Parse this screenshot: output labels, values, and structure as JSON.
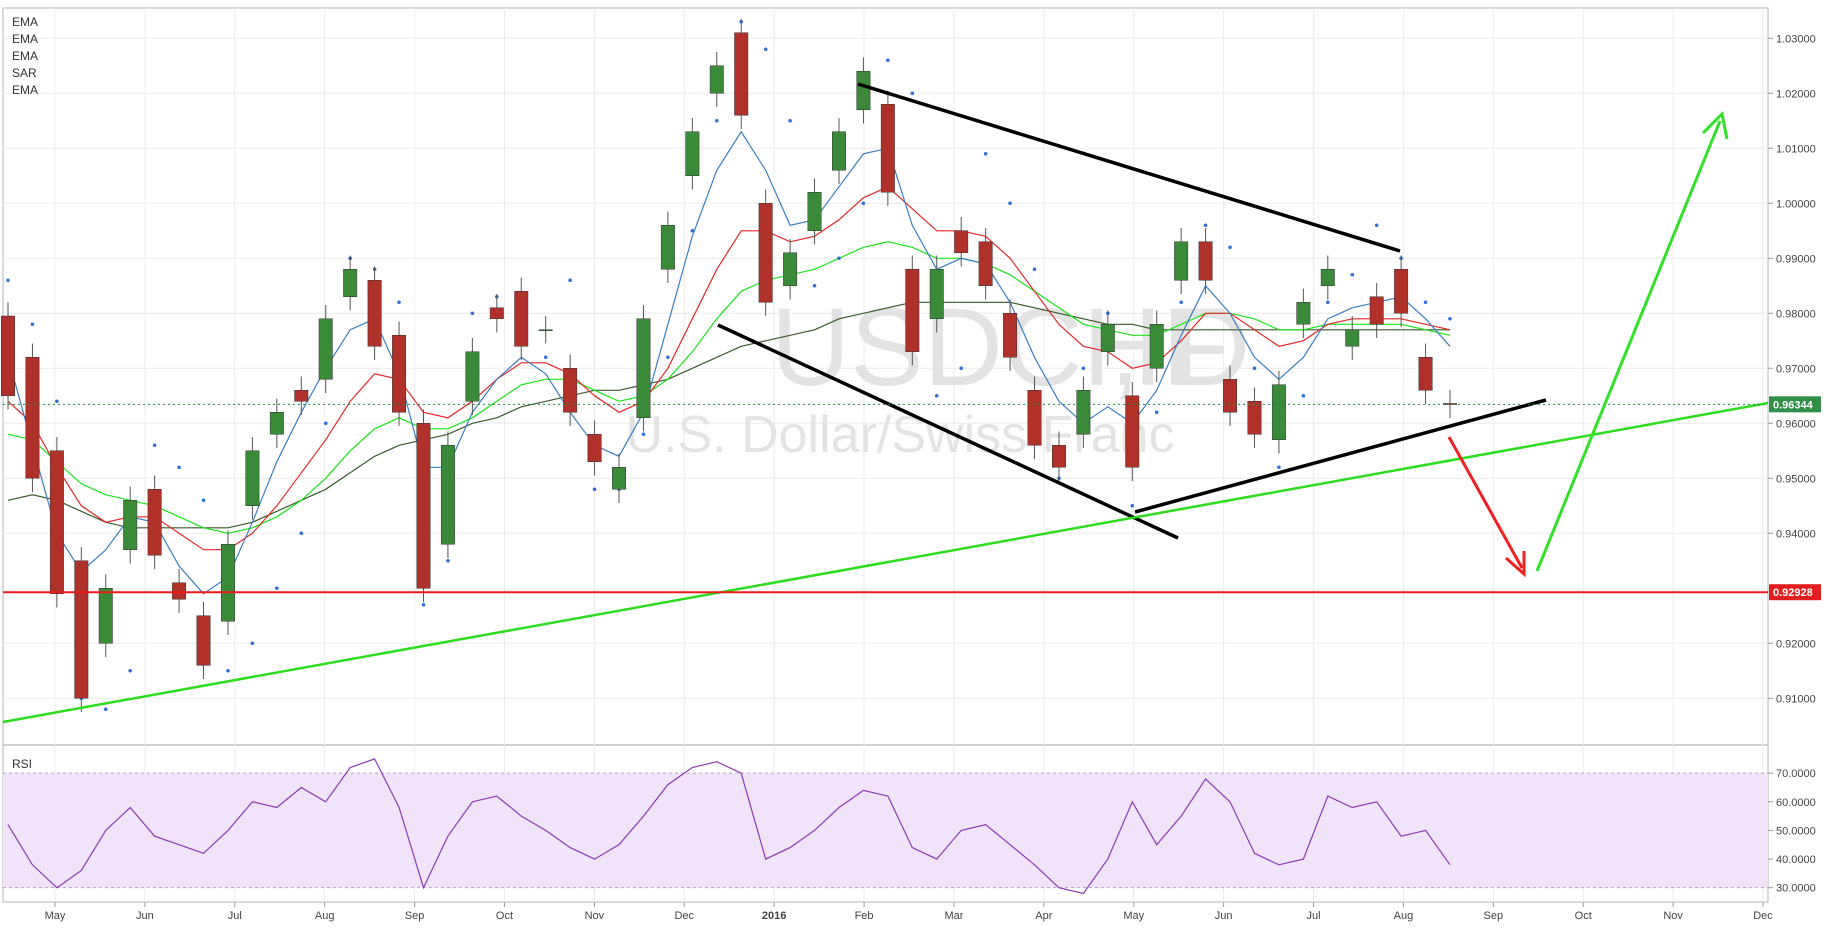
{
  "chart_data": [
    {
      "type": "line",
      "subtype": "candlestick",
      "symbol": "USDCHF",
      "interval": "D",
      "description": "U.S. Dollar/Swiss Franc",
      "studies": [
        "EMA",
        "EMA",
        "EMA",
        "SAR",
        "EMA"
      ],
      "x_tick_labels": [
        "May",
        "Jun",
        "Jul",
        "Aug",
        "Sep",
        "Oct",
        "Nov",
        "Dec",
        "2016",
        "Feb",
        "Mar",
        "Apr",
        "May",
        "Jun",
        "Jul",
        "Aug",
        "Sep",
        "Oct",
        "Nov",
        "Dec"
      ],
      "y_tick_labels": [
        "1.03000",
        "1.02000",
        "1.01000",
        "1.00000",
        "0.99000",
        "0.98000",
        "0.97000",
        "0.96000",
        "0.95000",
        "0.94000",
        "0.92000",
        "0.91000"
      ],
      "ylim": [
        0.9015,
        1.0355
      ],
      "last_price": "0.96344",
      "support_level": "0.92928",
      "grid": true,
      "price_series": [
        [
          0.9795,
          0.965
        ],
        [
          0.972,
          0.95
        ],
        [
          0.955,
          0.929
        ],
        [
          0.935,
          0.91
        ],
        [
          0.92,
          0.93
        ],
        [
          0.937,
          0.946
        ],
        [
          0.948,
          0.936
        ],
        [
          0.931,
          0.928
        ],
        [
          0.925,
          0.916
        ],
        [
          0.924,
          0.938
        ],
        [
          0.945,
          0.955
        ],
        [
          0.958,
          0.962
        ],
        [
          0.966,
          0.964
        ],
        [
          0.968,
          0.979
        ],
        [
          0.983,
          0.988
        ],
        [
          0.986,
          0.974
        ],
        [
          0.976,
          0.962
        ],
        [
          0.96,
          0.93
        ],
        [
          0.938,
          0.956
        ],
        [
          0.964,
          0.973
        ],
        [
          0.981,
          0.979
        ],
        [
          0.984,
          0.974
        ],
        [
          0.977,
          0.977
        ],
        [
          0.97,
          0.962
        ],
        [
          0.958,
          0.953
        ],
        [
          0.948,
          0.952
        ],
        [
          0.961,
          0.979
        ],
        [
          0.988,
          0.996
        ],
        [
          1.005,
          1.013
        ],
        [
          1.02,
          1.025
        ],
        [
          1.031,
          1.016
        ],
        [
          1.0,
          0.982
        ],
        [
          0.985,
          0.991
        ],
        [
          0.995,
          1.002
        ],
        [
          1.006,
          1.013
        ],
        [
          1.017,
          1.024
        ],
        [
          1.018,
          1.002
        ],
        [
          0.988,
          0.973
        ],
        [
          0.979,
          0.988
        ],
        [
          0.995,
          0.991
        ],
        [
          0.993,
          0.985
        ],
        [
          0.98,
          0.972
        ],
        [
          0.966,
          0.956
        ],
        [
          0.956,
          0.952
        ],
        [
          0.958,
          0.966
        ],
        [
          0.973,
          0.978
        ],
        [
          0.965,
          0.952
        ],
        [
          0.97,
          0.978
        ],
        [
          0.986,
          0.993
        ],
        [
          0.993,
          0.986
        ],
        [
          0.968,
          0.962
        ],
        [
          0.964,
          0.958
        ],
        [
          0.957,
          0.967
        ],
        [
          0.978,
          0.982
        ],
        [
          0.985,
          0.988
        ],
        [
          0.974,
          0.977
        ],
        [
          0.983,
          0.978
        ],
        [
          0.988,
          0.98
        ],
        [
          0.972,
          0.966
        ],
        [
          0.9636,
          0.9634
        ]
      ],
      "ema_fast": [
        0.972,
        0.956,
        0.94,
        0.933,
        0.937,
        0.943,
        0.942,
        0.934,
        0.929,
        0.932,
        0.942,
        0.953,
        0.962,
        0.97,
        0.977,
        0.979,
        0.969,
        0.952,
        0.952,
        0.962,
        0.968,
        0.972,
        0.969,
        0.962,
        0.956,
        0.954,
        0.962,
        0.978,
        0.994,
        1.006,
        1.013,
        1.006,
        0.996,
        0.997,
        1.003,
        1.009,
        1.01,
        0.996,
        0.988,
        0.99,
        0.989,
        0.982,
        0.972,
        0.964,
        0.96,
        0.963,
        0.96,
        0.966,
        0.976,
        0.985,
        0.98,
        0.972,
        0.968,
        0.972,
        0.979,
        0.981,
        0.982,
        0.983,
        0.979,
        0.974
      ],
      "ema_mid": [
        0.964,
        0.96,
        0.952,
        0.945,
        0.942,
        0.943,
        0.943,
        0.94,
        0.937,
        0.937,
        0.94,
        0.945,
        0.951,
        0.957,
        0.964,
        0.969,
        0.968,
        0.962,
        0.961,
        0.964,
        0.968,
        0.971,
        0.971,
        0.969,
        0.965,
        0.962,
        0.964,
        0.97,
        0.979,
        0.988,
        0.995,
        0.995,
        0.993,
        0.994,
        0.997,
        1.001,
        1.003,
        0.999,
        0.995,
        0.995,
        0.994,
        0.99,
        0.984,
        0.978,
        0.974,
        0.973,
        0.97,
        0.971,
        0.975,
        0.98,
        0.98,
        0.977,
        0.974,
        0.975,
        0.978,
        0.979,
        0.979,
        0.979,
        0.978,
        0.977
      ],
      "ema_slow": [
        0.958,
        0.957,
        0.953,
        0.949,
        0.947,
        0.946,
        0.945,
        0.943,
        0.941,
        0.94,
        0.941,
        0.943,
        0.946,
        0.95,
        0.955,
        0.959,
        0.961,
        0.959,
        0.959,
        0.961,
        0.964,
        0.967,
        0.968,
        0.968,
        0.966,
        0.964,
        0.965,
        0.968,
        0.973,
        0.979,
        0.984,
        0.986,
        0.987,
        0.988,
        0.99,
        0.992,
        0.993,
        0.992,
        0.99,
        0.99,
        0.989,
        0.987,
        0.984,
        0.981,
        0.978,
        0.977,
        0.976,
        0.976,
        0.978,
        0.98,
        0.98,
        0.979,
        0.977,
        0.977,
        0.978,
        0.978,
        0.978,
        0.978,
        0.977,
        0.976
      ],
      "ema_long": [
        0.946,
        0.947,
        0.946,
        0.944,
        0.942,
        0.941,
        0.941,
        0.941,
        0.941,
        0.941,
        0.942,
        0.944,
        0.946,
        0.948,
        0.951,
        0.954,
        0.956,
        0.957,
        0.958,
        0.96,
        0.961,
        0.963,
        0.964,
        0.965,
        0.966,
        0.966,
        0.967,
        0.968,
        0.97,
        0.972,
        0.974,
        0.975,
        0.976,
        0.977,
        0.979,
        0.98,
        0.981,
        0.982,
        0.982,
        0.982,
        0.982,
        0.982,
        0.981,
        0.98,
        0.979,
        0.978,
        0.978,
        0.977,
        0.977,
        0.977,
        0.977,
        0.977,
        0.977,
        0.977,
        0.977,
        0.977,
        0.977,
        0.977,
        0.977,
        0.977
      ],
      "sar": [
        0.986,
        0.978,
        0.964,
        0.91,
        0.908,
        0.915,
        0.956,
        0.952,
        0.946,
        0.915,
        0.92,
        0.93,
        0.94,
        0.96,
        0.99,
        0.988,
        0.982,
        0.927,
        0.935,
        0.98,
        0.983,
        0.98,
        0.972,
        0.986,
        0.948,
        0.948,
        0.958,
        0.972,
        0.995,
        1.015,
        1.033,
        1.028,
        1.015,
        0.985,
        0.99,
        1.0,
        1.026,
        1.02,
        0.965,
        0.97,
        1.009,
        1.0,
        0.988,
        0.95,
        0.97,
        0.98,
        0.945,
        0.962,
        0.982,
        0.996,
        0.992,
        0.97,
        0.952,
        0.965,
        0.982,
        0.987,
        0.996,
        0.99,
        0.982,
        0.979
      ],
      "annotations": [
        "descending upper trendline",
        "descending lower trendline",
        "ascending support trendline",
        "long-term rising trendline",
        "red arrow down",
        "green arrow up"
      ]
    },
    {
      "type": "line",
      "title": "RSI",
      "y_tick_labels": [
        "70.0000",
        "60.0000",
        "50.0000",
        "40.0000",
        "30.0000"
      ],
      "ylim": [
        25,
        76
      ],
      "band": [
        30,
        70
      ],
      "values": [
        52,
        38,
        30,
        36,
        50,
        58,
        48,
        45,
        42,
        50,
        60,
        58,
        65,
        60,
        72,
        75,
        58,
        30,
        48,
        60,
        62,
        55,
        50,
        44,
        40,
        45,
        55,
        66,
        72,
        74,
        70,
        40,
        44,
        50,
        58,
        64,
        62,
        44,
        40,
        50,
        52,
        45,
        38,
        30,
        28,
        40,
        60,
        45,
        55,
        68,
        60,
        42,
        38,
        40,
        62,
        58,
        60,
        48,
        50,
        38
      ]
    }
  ]
}
